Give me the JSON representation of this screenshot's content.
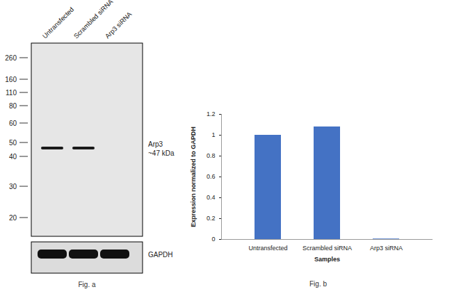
{
  "blot": {
    "lanes": [
      "Untransfected",
      "Scrambled siRNA",
      "Arp3 siRNA"
    ],
    "markers_kda": [
      260,
      160,
      110,
      80,
      60,
      50,
      40,
      30,
      20
    ],
    "target": {
      "name": "Arp3",
      "size_label": "~47 kDa",
      "band_kda": 46,
      "present": [
        true,
        true,
        false
      ]
    },
    "loading_control": {
      "name": "GAPDH",
      "present": [
        true,
        true,
        true
      ]
    },
    "caption": "Fig. a"
  },
  "chart_data": {
    "type": "bar",
    "caption": "Fig. b",
    "x_label": "Samples",
    "y_label": "Expression normalized to GAPDH",
    "categories": [
      "Untransfected",
      "Scrambled siRNA",
      "Arp3 siRNA"
    ],
    "values": [
      1.0,
      1.08,
      0.005
    ],
    "color": "#4472c4",
    "ylim": [
      0,
      1.2
    ],
    "yticks": [
      0,
      0.2,
      0.4,
      0.6,
      0.8,
      1,
      1.2
    ],
    "grid": false
  }
}
